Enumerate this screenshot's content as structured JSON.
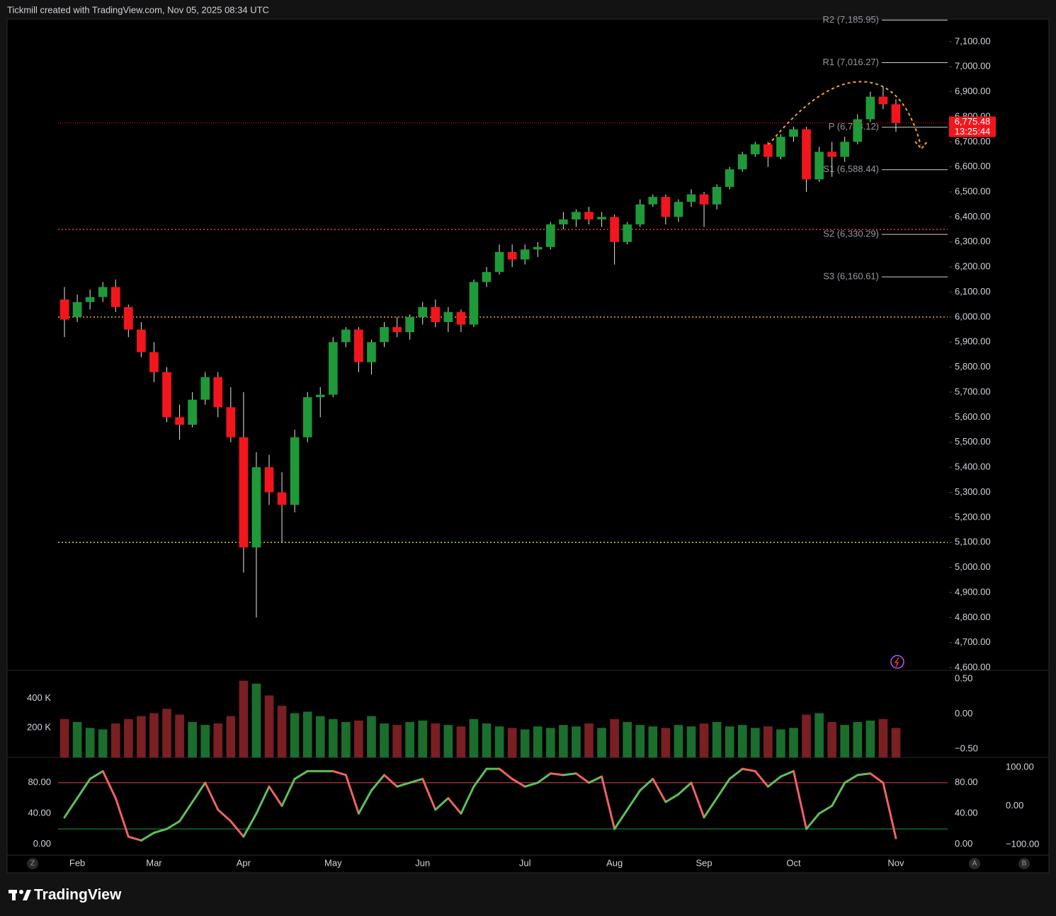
{
  "header": "Tickmill created with TradingView.com, Nov 05, 2025 08:34 UTC",
  "footer": "TradingView",
  "controls": [
    "Z",
    "A",
    "B"
  ],
  "chart_data": [
    {
      "type": "candlestick",
      "categories": [
        null,
        "Feb",
        null,
        null,
        null,
        null,
        null,
        "Mar",
        null,
        null,
        null,
        null,
        null,
        null,
        "Apr",
        null,
        null,
        null,
        null,
        null,
        null,
        "May",
        null,
        null,
        null,
        null,
        null,
        null,
        "Jun",
        null,
        null,
        null,
        null,
        null,
        null,
        null,
        "Jul",
        null,
        null,
        null,
        null,
        null,
        null,
        "Aug",
        null,
        null,
        null,
        null,
        null,
        null,
        "Sep",
        null,
        null,
        null,
        null,
        null,
        null,
        "Oct",
        null,
        null,
        null,
        null,
        null,
        null,
        null,
        "Nov"
      ],
      "open": [
        6070,
        6000,
        6060,
        6080,
        6120,
        6040,
        5950,
        5860,
        5780,
        5600,
        5570,
        5670,
        5760,
        5640,
        5520,
        5080,
        5400,
        5300,
        5250,
        5520,
        5680,
        5690,
        5900,
        5950,
        5820,
        5900,
        5960,
        5940,
        6000,
        6040,
        5980,
        6020,
        5970,
        6140,
        6180,
        6260,
        6230,
        6270,
        6280,
        6370,
        6390,
        6420,
        6390,
        6400,
        6300,
        6370,
        6450,
        6480,
        6400,
        6460,
        6490,
        6450,
        6520,
        6590,
        6650,
        6690,
        6640,
        6720,
        6750,
        6550,
        6660,
        6640,
        6700,
        6790,
        6880,
        6850
      ],
      "high": [
        6120,
        6090,
        6110,
        6140,
        6150,
        6050,
        5980,
        5900,
        5800,
        5650,
        5700,
        5780,
        5780,
        5720,
        5700,
        5460,
        5450,
        5380,
        5550,
        5700,
        5720,
        5920,
        5960,
        5960,
        5910,
        5980,
        6000,
        6010,
        6060,
        6070,
        6040,
        6030,
        6150,
        6200,
        6290,
        6290,
        6290,
        6300,
        6380,
        6420,
        6430,
        6440,
        6420,
        6410,
        6380,
        6470,
        6490,
        6490,
        6470,
        6510,
        6500,
        6530,
        6600,
        6660,
        6700,
        6700,
        6730,
        6760,
        6760,
        6680,
        6700,
        6720,
        6810,
        6900,
        6920,
        6870
      ],
      "low": [
        5920,
        5980,
        6030,
        6060,
        6020,
        5920,
        5840,
        5740,
        5580,
        5510,
        5560,
        5650,
        5600,
        5500,
        4980,
        4800,
        5250,
        5100,
        5220,
        5500,
        5600,
        5680,
        5880,
        5780,
        5770,
        5880,
        5920,
        5910,
        5970,
        5960,
        5940,
        5940,
        5960,
        6120,
        6170,
        6200,
        6210,
        6240,
        6270,
        6350,
        6360,
        6370,
        6360,
        6210,
        6290,
        6360,
        6440,
        6370,
        6380,
        6440,
        6360,
        6430,
        6510,
        6580,
        6640,
        6600,
        6630,
        6700,
        6500,
        6540,
        6560,
        6620,
        6690,
        6780,
        6830,
        6740
      ],
      "close": [
        5990,
        6060,
        6080,
        6120,
        6040,
        5950,
        5860,
        5780,
        5600,
        5570,
        5670,
        5760,
        5640,
        5520,
        5080,
        5400,
        5300,
        5250,
        5520,
        5680,
        5690,
        5900,
        5950,
        5820,
        5900,
        5960,
        5940,
        6000,
        6040,
        5980,
        6020,
        5970,
        6140,
        6180,
        6260,
        6230,
        6270,
        6280,
        6370,
        6390,
        6420,
        6390,
        6400,
        6300,
        6370,
        6450,
        6480,
        6400,
        6460,
        6490,
        6450,
        6520,
        6590,
        6650,
        6690,
        6640,
        6720,
        6750,
        6550,
        6660,
        6640,
        6700,
        6790,
        6880,
        6850,
        6775.48
      ],
      "up_color": "#1f9a38",
      "down_color": "#f2161c",
      "ylim": [
        4589,
        7190
      ],
      "yticks": [
        {
          "value": 4600,
          "label": "4,600.00"
        },
        {
          "value": 4700,
          "label": "4,700.00"
        },
        {
          "value": 4800,
          "label": "4,800.00"
        },
        {
          "value": 4900,
          "label": "4,900.00"
        },
        {
          "value": 5000,
          "label": "5,000.00"
        },
        {
          "value": 5100,
          "label": "5,100.00"
        },
        {
          "value": 5200,
          "label": "5,200.00"
        },
        {
          "value": 5300,
          "label": "5,300.00"
        },
        {
          "value": 5400,
          "label": "5,400.00"
        },
        {
          "value": 5500,
          "label": "5,500.00"
        },
        {
          "value": 5600,
          "label": "5,600.00"
        },
        {
          "value": 5700,
          "label": "5,700.00"
        },
        {
          "value": 5800,
          "label": "5,800.00"
        },
        {
          "value": 5900,
          "label": "5,900.00"
        },
        {
          "value": 6000,
          "label": "6,000.00"
        },
        {
          "value": 6100,
          "label": "6,100.00"
        },
        {
          "value": 6200,
          "label": "6,200.00"
        },
        {
          "value": 6300,
          "label": "6,300.00"
        },
        {
          "value": 6400,
          "label": "6,400.00"
        },
        {
          "value": 6500,
          "label": "6,500.00"
        },
        {
          "value": 6600,
          "label": "6,600.00"
        },
        {
          "value": 6700,
          "label": "6,700.00"
        },
        {
          "value": 6800,
          "label": "6,800.00"
        },
        {
          "value": 6900,
          "label": "6,900.00"
        },
        {
          "value": 7000,
          "label": "7,000.00"
        },
        {
          "value": 7100,
          "label": "7,100.00"
        }
      ],
      "pivots": [
        {
          "label": "R2 (7,185.95)",
          "value": 7185.95
        },
        {
          "label": "R1 (7,016.27)",
          "value": 7016.27
        },
        {
          "label": "P (6,758.12)",
          "value": 6758.12
        },
        {
          "label": "S1 (6,588.44)",
          "value": 6588.44
        },
        {
          "label": "S2 (6,330.29)",
          "value": 6330.29
        },
        {
          "label": "S3 (6,160.61)",
          "value": 6160.61
        }
      ],
      "hlines": [
        {
          "value": 6350,
          "color": "#f23645"
        },
        {
          "value": 6000,
          "color": "#f5a623"
        },
        {
          "value": 5100,
          "color": "#b5e61d"
        }
      ],
      "last_price": {
        "value": 6775.48,
        "label": "6,775.48"
      },
      "countdown": "13:25:44"
    },
    {
      "type": "bar",
      "values": [
        260000,
        240000,
        200000,
        190000,
        230000,
        260000,
        280000,
        300000,
        330000,
        290000,
        240000,
        220000,
        230000,
        280000,
        520000,
        500000,
        420000,
        350000,
        300000,
        310000,
        280000,
        260000,
        240000,
        250000,
        280000,
        230000,
        220000,
        240000,
        250000,
        230000,
        220000,
        210000,
        260000,
        230000,
        210000,
        200000,
        190000,
        210000,
        200000,
        220000,
        210000,
        230000,
        200000,
        260000,
        240000,
        220000,
        210000,
        200000,
        220000,
        210000,
        230000,
        240000,
        210000,
        220000,
        200000,
        210000,
        190000,
        200000,
        290000,
        300000,
        240000,
        220000,
        240000,
        250000,
        260000,
        200000
      ],
      "ylim": [
        0,
        590000
      ],
      "yticks": [
        {
          "value": 200000,
          "label": "200 K"
        },
        {
          "value": 400000,
          "label": "400 K"
        }
      ],
      "y2lim": [
        -0.62,
        0.62
      ],
      "y2ticks": [
        {
          "value": 0.5,
          "label": "0.50"
        },
        {
          "value": 0,
          "label": "0.00"
        },
        {
          "value": -0.5,
          "label": "−0.50"
        }
      ]
    },
    {
      "type": "line",
      "values": [
        35,
        60,
        85,
        95,
        60,
        10,
        5,
        15,
        20,
        30,
        55,
        80,
        45,
        30,
        10,
        40,
        75,
        50,
        85,
        95,
        95,
        95,
        90,
        40,
        70,
        90,
        75,
        80,
        85,
        45,
        60,
        40,
        75,
        98,
        98,
        85,
        75,
        80,
        92,
        90,
        92,
        80,
        88,
        20,
        45,
        70,
        85,
        55,
        65,
        80,
        35,
        60,
        85,
        98,
        95,
        75,
        88,
        95,
        20,
        40,
        50,
        80,
        90,
        92,
        80,
        8
      ],
      "up_color": "#5fbf5a",
      "down_color": "#f0625d",
      "levels": [
        {
          "value": 80,
          "color": "#f23645"
        },
        {
          "value": 20,
          "color": "#1f9a38"
        }
      ],
      "ylim": [
        -14,
        111
      ],
      "yticks": [
        {
          "value": 0,
          "label": "0.00"
        },
        {
          "value": 40,
          "label": "40.00"
        },
        {
          "value": 80,
          "label": "80.00"
        }
      ],
      "y2lim": [
        -127.5,
        122
      ],
      "y2ticks": [
        {
          "value": 100,
          "label": "100.00"
        },
        {
          "value": 0,
          "label": "0.00"
        },
        {
          "value": -100,
          "label": "−100.00"
        }
      ]
    }
  ]
}
